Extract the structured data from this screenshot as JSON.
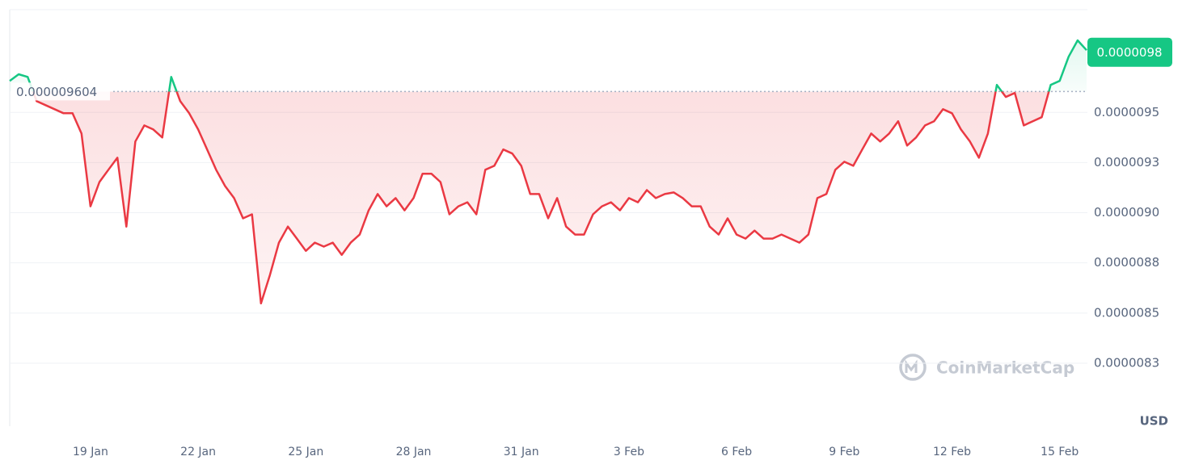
{
  "chart_data": {
    "type": "line",
    "categories": [
      null,
      null,
      null,
      null,
      null,
      null,
      null,
      null,
      null,
      "19 Jan",
      null,
      null,
      null,
      null,
      null,
      null,
      null,
      null,
      null,
      null,
      null,
      "22 Jan",
      null,
      null,
      null,
      null,
      null,
      null,
      null,
      null,
      null,
      null,
      null,
      "25 Jan",
      null,
      null,
      null,
      null,
      null,
      null,
      null,
      null,
      null,
      null,
      null,
      "28 Jan",
      null,
      null,
      null,
      null,
      null,
      null,
      null,
      null,
      null,
      null,
      null,
      "31 Jan",
      null,
      null,
      null,
      null,
      null,
      null,
      null,
      null,
      null,
      null,
      null,
      "3 Feb",
      null,
      null,
      null,
      null,
      null,
      null,
      null,
      null,
      null,
      null,
      null,
      "6 Feb",
      null,
      null,
      null,
      null,
      null,
      null,
      null,
      null,
      null,
      null,
      null,
      "9 Feb",
      null,
      null,
      null,
      null,
      null,
      null,
      null,
      null,
      null,
      null,
      null,
      "12 Feb",
      null,
      null,
      null,
      null,
      null,
      null,
      null,
      null,
      null,
      null,
      null,
      "15 Feb",
      null,
      null,
      null
    ],
    "values": [
      9.657e-06,
      9.69e-06,
      9.677e-06,
      9.556e-06,
      9.536e-06,
      9.516e-06,
      9.496e-06,
      9.496e-06,
      9.395e-06,
      9.032e-06,
      9.153e-06,
      9.214e-06,
      9.274e-06,
      8.931e-06,
      9.355e-06,
      9.435e-06,
      9.415e-06,
      9.375e-06,
      9.677e-06,
      9.556e-06,
      9.496e-06,
      9.415e-06,
      9.315e-06,
      9.214e-06,
      9.133e-06,
      9.073e-06,
      8.972e-06,
      8.992e-06,
      8.548e-06,
      8.69e-06,
      8.851e-06,
      8.931e-06,
      8.871e-06,
      8.81e-06,
      8.851e-06,
      8.831e-06,
      8.851e-06,
      8.79e-06,
      8.851e-06,
      8.891e-06,
      9.012e-06,
      9.093e-06,
      9.032e-06,
      9.073e-06,
      9.012e-06,
      9.073e-06,
      9.194e-06,
      9.194e-06,
      9.153e-06,
      8.992e-06,
      9.032e-06,
      9.052e-06,
      8.992e-06,
      9.214e-06,
      9.234e-06,
      9.315e-06,
      9.295e-06,
      9.234e-06,
      9.093e-06,
      9.093e-06,
      8.972e-06,
      9.073e-06,
      8.931e-06,
      8.891e-06,
      8.891e-06,
      8.992e-06,
      9.032e-06,
      9.052e-06,
      9.012e-06,
      9.073e-06,
      9.052e-06,
      9.113e-06,
      9.073e-06,
      9.093e-06,
      9.101e-06,
      9.073e-06,
      9.032e-06,
      9.032e-06,
      8.931e-06,
      8.891e-06,
      8.972e-06,
      8.891e-06,
      8.871e-06,
      8.911e-06,
      8.871e-06,
      8.871e-06,
      8.891e-06,
      8.871e-06,
      8.851e-06,
      8.891e-06,
      9.073e-06,
      9.093e-06,
      9.214e-06,
      9.254e-06,
      9.234e-06,
      9.315e-06,
      9.395e-06,
      9.355e-06,
      9.395e-06,
      9.456e-06,
      9.335e-06,
      9.375e-06,
      9.435e-06,
      9.456e-06,
      9.516e-06,
      9.496e-06,
      9.415e-06,
      9.355e-06,
      9.274e-06,
      9.395e-06,
      9.637e-06,
      9.577e-06,
      9.597e-06,
      9.435e-06,
      9.456e-06,
      9.476e-06,
      9.637e-06,
      9.657e-06,
      9.778e-06,
      9.859e-06,
      9.81e-06
    ],
    "up_color": "#16c784",
    "down_color": "#ea3943",
    "ylim": [
      7.936e-06,
      1.0012e-05
    ],
    "yticks": [
      {
        "value": 9.5e-06,
        "label": "0.0000095"
      },
      {
        "value": 9.25e-06,
        "label": "0.0000093"
      },
      {
        "value": 9e-06,
        "label": "0.0000090"
      },
      {
        "value": 8.75e-06,
        "label": "0.0000088"
      },
      {
        "value": 8.5e-06,
        "label": "0.0000085"
      },
      {
        "value": 8.25e-06,
        "label": "0.0000083"
      }
    ],
    "grid": true,
    "baseline": {
      "value": 9.604e-06,
      "label": "0.000009604"
    },
    "current_price": {
      "value": 9.8e-06,
      "label": "0.0000098"
    },
    "y_unit": "USD",
    "watermark": "CoinMarketCap"
  }
}
